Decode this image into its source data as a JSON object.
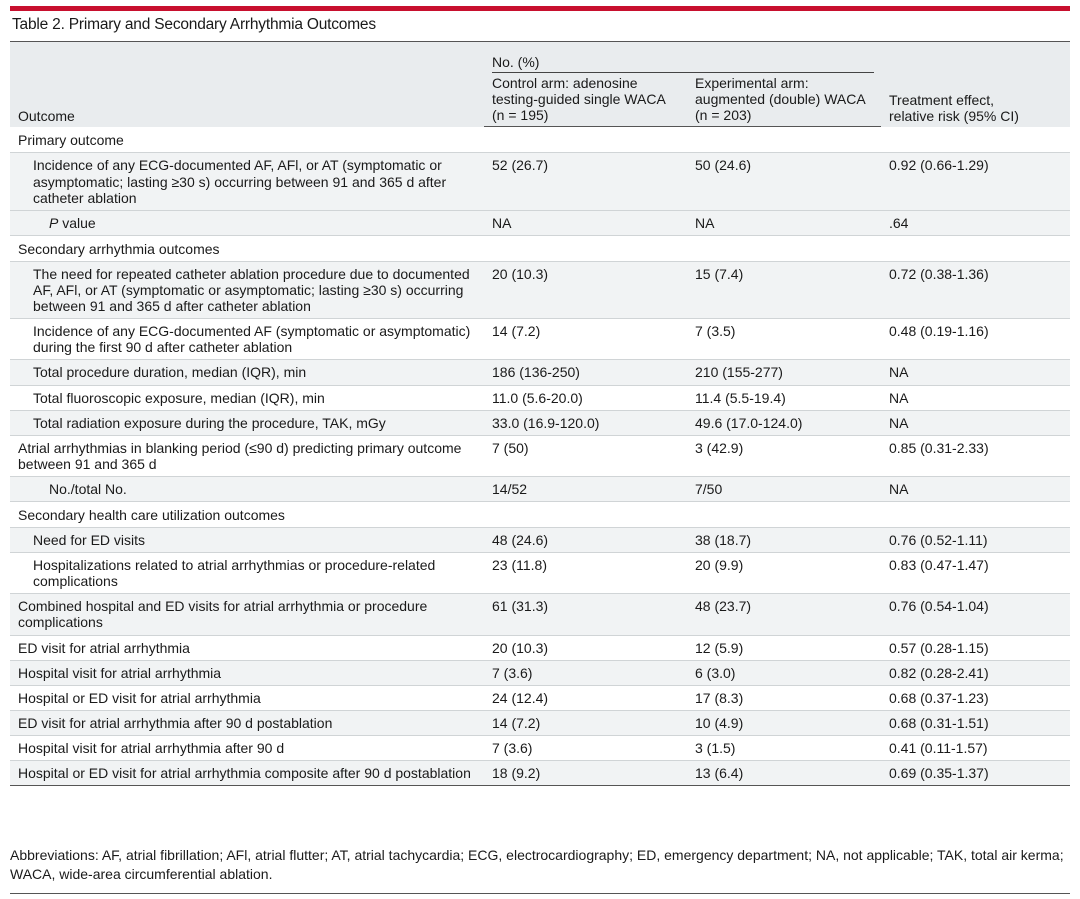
{
  "title": "Table 2. Primary and Secondary Arrhythmia Outcomes",
  "header": {
    "outcome": "Outcome",
    "group": "No. (%)",
    "control": [
      "Control arm: adenosine",
      "testing-guided single WACA",
      "(n = 195)"
    ],
    "experimental": [
      "Experimental arm:",
      "augmented (double) WACA",
      "(n = 203)"
    ],
    "effect": [
      "Treatment effect,",
      "relative risk (95% CI)"
    ]
  },
  "rows": [
    {
      "type": "section",
      "label": "Primary outcome"
    },
    {
      "type": "data",
      "indent": 1,
      "shade": true,
      "label": "Incidence of any ECG-documented AF, AFl, or AT (symptomatic or asymptomatic; lasting ≥30 s) occurring between 91 and 365 d after catheter ablation",
      "control": "52 (26.7)",
      "experimental": "50 (24.6)",
      "effect": "0.92 (0.66-1.29)"
    },
    {
      "type": "data",
      "indent": 2,
      "shade": true,
      "italic_prefix": "P",
      "label": " value",
      "control": "NA",
      "experimental": "NA",
      "effect": ".64"
    },
    {
      "type": "section",
      "label": "Secondary arrhythmia outcomes"
    },
    {
      "type": "data",
      "indent": 1,
      "shade": true,
      "label": "The need for repeated catheter ablation procedure due to documented AF, AFl, or AT (symptomatic or asymptomatic; lasting ≥30 s) occurring between 91 and 365 d after catheter ablation",
      "control": "20 (10.3)",
      "experimental": "15 (7.4)",
      "effect": "0.72 (0.38-1.36)"
    },
    {
      "type": "data",
      "indent": 1,
      "shade": false,
      "label": "Incidence of any ECG-documented AF (symptomatic or asymptomatic) during the first 90 d after catheter ablation",
      "control": "14 (7.2)",
      "experimental": "7 (3.5)",
      "effect": "0.48 (0.19-1.16)"
    },
    {
      "type": "data",
      "indent": 1,
      "shade": true,
      "label": "Total procedure duration, median (IQR), min",
      "control": "186 (136-250)",
      "experimental": "210 (155-277)",
      "effect": "NA"
    },
    {
      "type": "data",
      "indent": 1,
      "shade": false,
      "label": "Total fluoroscopic exposure, median (IQR), min",
      "control": "11.0 (5.6-20.0)",
      "experimental": "11.4 (5.5-19.4)",
      "effect": "NA"
    },
    {
      "type": "data",
      "indent": 1,
      "shade": true,
      "label": "Total radiation exposure during the procedure, TAK, mGy",
      "control": "33.0 (16.9-120.0)",
      "experimental": "49.6 (17.0-124.0)",
      "effect": "NA"
    },
    {
      "type": "data",
      "indent": 0,
      "shade": false,
      "label": "Atrial arrhythmias in blanking period (≤90 d) predicting primary outcome between 91 and 365 d",
      "control": "7 (50)",
      "experimental": "3 (42.9)",
      "effect": "0.85 (0.31-2.33)"
    },
    {
      "type": "data",
      "indent": 2,
      "shade": true,
      "label": "No./total No.",
      "control": "14/52",
      "experimental": "7/50",
      "effect": "NA"
    },
    {
      "type": "section",
      "label": "Secondary health care utilization outcomes"
    },
    {
      "type": "data",
      "indent": 1,
      "shade": true,
      "label": "Need for ED visits",
      "control": "48 (24.6)",
      "experimental": "38 (18.7)",
      "effect": "0.76 (0.52-1.11)"
    },
    {
      "type": "data",
      "indent": 1,
      "shade": false,
      "label": "Hospitalizations related to atrial arrhythmias or procedure-related complications",
      "control": "23 (11.8)",
      "experimental": "20 (9.9)",
      "effect": "0.83 (0.47-1.47)"
    },
    {
      "type": "data",
      "indent": 0,
      "shade": true,
      "label": "Combined hospital and ED visits for atrial arrhythmia or procedure complications",
      "control": "61 (31.3)",
      "experimental": "48 (23.7)",
      "effect": "0.76 (0.54-1.04)"
    },
    {
      "type": "data",
      "indent": 0,
      "shade": false,
      "label": "ED visit for atrial arrhythmia",
      "control": "20 (10.3)",
      "experimental": "12 (5.9)",
      "effect": "0.57 (0.28-1.15)"
    },
    {
      "type": "data",
      "indent": 0,
      "shade": true,
      "label": "Hospital visit for atrial arrhythmia",
      "control": "7 (3.6)",
      "experimental": "6 (3.0)",
      "effect": "0.82 (0.28-2.41)"
    },
    {
      "type": "data",
      "indent": 0,
      "shade": false,
      "label": "Hospital or ED visit for atrial arrhythmia",
      "control": "24 (12.4)",
      "experimental": "17 (8.3)",
      "effect": "0.68 (0.37-1.23)"
    },
    {
      "type": "data",
      "indent": 0,
      "shade": true,
      "label": "ED visit for atrial arrhythmia after 90 d postablation",
      "control": "14 (7.2)",
      "experimental": "10 (4.9)",
      "effect": "0.68 (0.31-1.51)"
    },
    {
      "type": "data",
      "indent": 0,
      "shade": false,
      "label": "Hospital visit for atrial arrhythmia after 90 d",
      "control": "7 (3.6)",
      "experimental": "3 (1.5)",
      "effect": "0.41 (0.11-1.57)"
    },
    {
      "type": "data",
      "indent": 0,
      "shade": true,
      "label": "Hospital or ED visit for atrial arrhythmia composite after 90 d postablation",
      "control": "18 (9.2)",
      "experimental": "13 (6.4)",
      "effect": "0.69 (0.35-1.37)"
    }
  ],
  "footnote": "Abbreviations: AF, atrial fibrillation; AFl, atrial flutter; AT, atrial tachycardia; ECG, electrocardiography; ED, emergency department; NA, not applicable; TAK, total air kerma; WACA, wide-area circumferential ablation.",
  "colors": {
    "accent": "#c8102e",
    "header_bg": "#e9ecee",
    "row_shade": "#f1f3f4"
  }
}
